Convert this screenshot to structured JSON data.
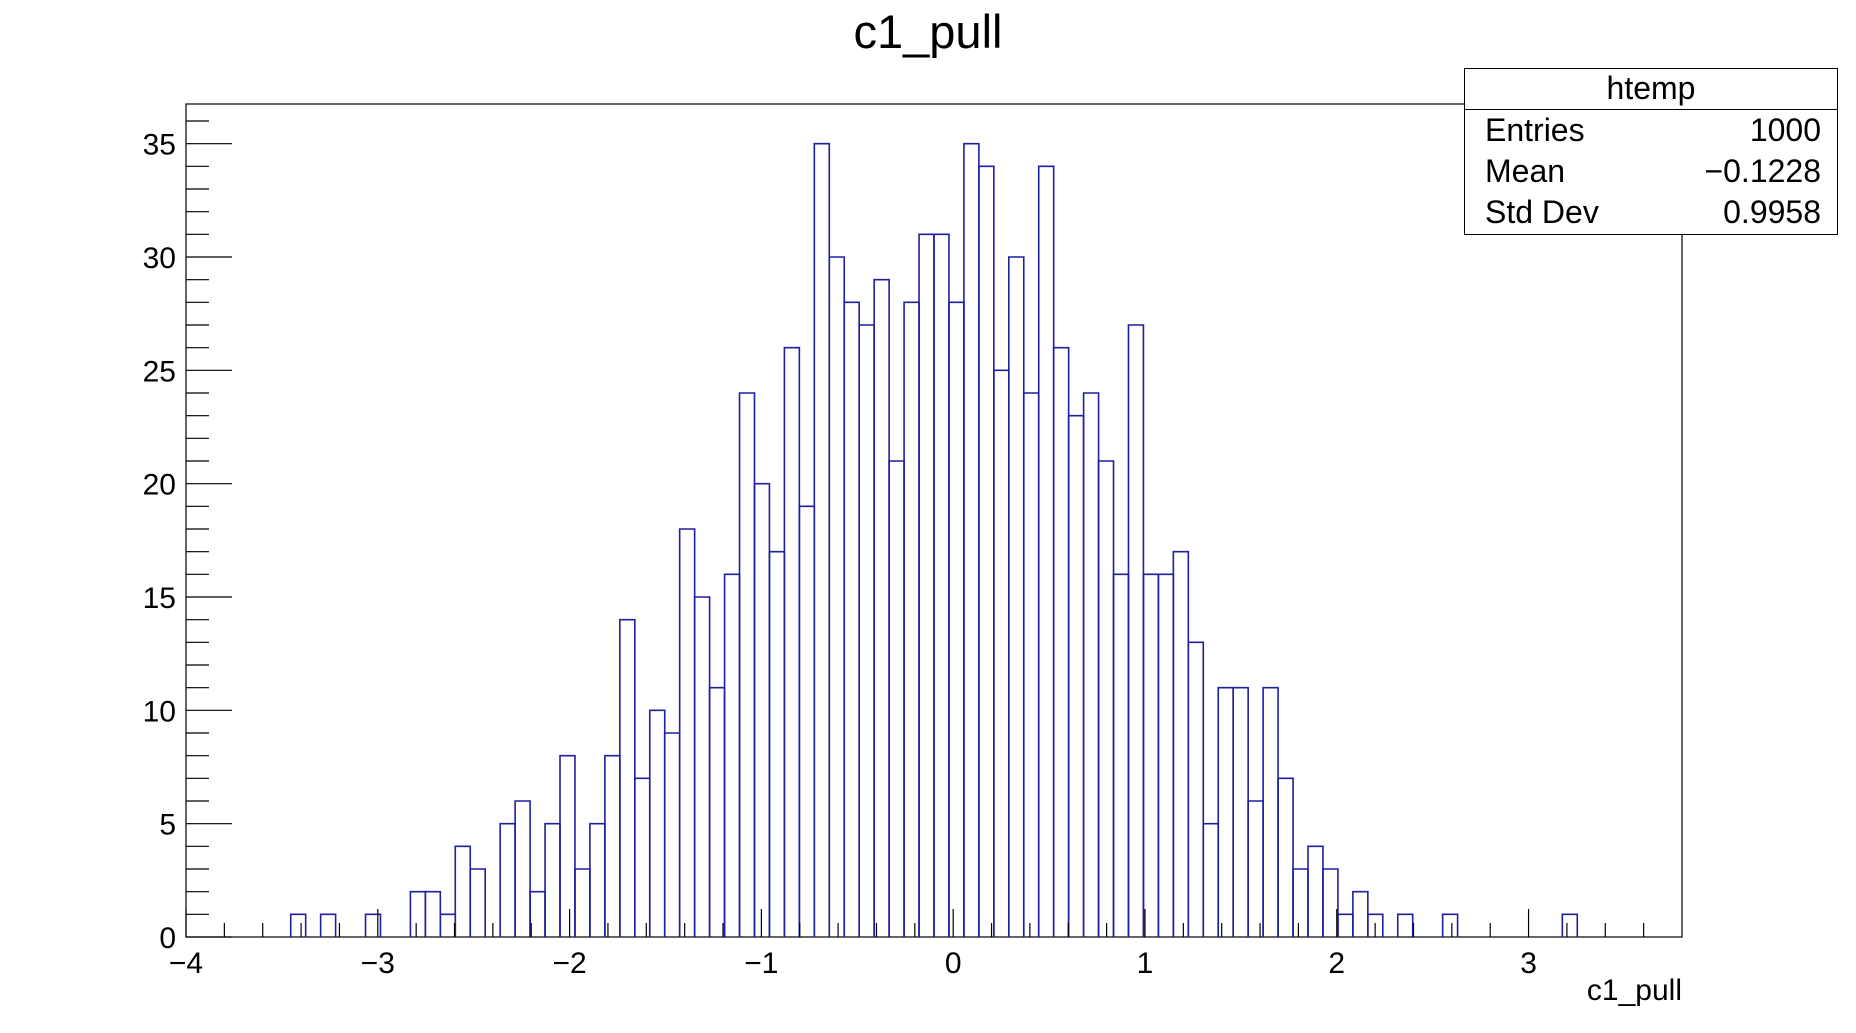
{
  "chart_data": {
    "type": "histogram",
    "title": "c1_pull",
    "xlabel": "c1_pull",
    "ylabel": "",
    "xlim": [
      -4,
      3.8
    ],
    "ylim": [
      0,
      36.75
    ],
    "x_ticks": [
      -4,
      -3,
      -2,
      -1,
      0,
      1,
      2,
      3
    ],
    "x_tick_labels": [
      "−4",
      "−3",
      "−2",
      "−1",
      "0",
      "1",
      "2",
      "3"
    ],
    "y_ticks": [
      0,
      5,
      10,
      15,
      20,
      25,
      30,
      35
    ],
    "y_tick_labels": [
      "0",
      "5",
      "10",
      "15",
      "20",
      "25",
      "30",
      "35"
    ],
    "bin_width": 0.078,
    "bins": [
      {
        "x": -3.454,
        "count": 1
      },
      {
        "x": -3.298,
        "count": 1
      },
      {
        "x": -3.064,
        "count": 1
      },
      {
        "x": -2.83,
        "count": 2
      },
      {
        "x": -2.752,
        "count": 2
      },
      {
        "x": -2.674,
        "count": 1
      },
      {
        "x": -2.596,
        "count": 4
      },
      {
        "x": -2.518,
        "count": 3
      },
      {
        "x": -2.362,
        "count": 5
      },
      {
        "x": -2.284,
        "count": 6
      },
      {
        "x": -2.206,
        "count": 2
      },
      {
        "x": -2.128,
        "count": 5
      },
      {
        "x": -2.05,
        "count": 8
      },
      {
        "x": -1.972,
        "count": 3
      },
      {
        "x": -1.894,
        "count": 5
      },
      {
        "x": -1.816,
        "count": 8
      },
      {
        "x": -1.738,
        "count": 14
      },
      {
        "x": -1.66,
        "count": 7
      },
      {
        "x": -1.582,
        "count": 10
      },
      {
        "x": -1.504,
        "count": 9
      },
      {
        "x": -1.426,
        "count": 18
      },
      {
        "x": -1.348,
        "count": 15
      },
      {
        "x": -1.27,
        "count": 11
      },
      {
        "x": -1.192,
        "count": 16
      },
      {
        "x": -1.114,
        "count": 24
      },
      {
        "x": -1.036,
        "count": 20
      },
      {
        "x": -0.958,
        "count": 17
      },
      {
        "x": -0.88,
        "count": 26
      },
      {
        "x": -0.802,
        "count": 19
      },
      {
        "x": -0.724,
        "count": 35
      },
      {
        "x": -0.646,
        "count": 30
      },
      {
        "x": -0.568,
        "count": 28
      },
      {
        "x": -0.49,
        "count": 27
      },
      {
        "x": -0.412,
        "count": 29
      },
      {
        "x": -0.334,
        "count": 21
      },
      {
        "x": -0.256,
        "count": 28
      },
      {
        "x": -0.178,
        "count": 31
      },
      {
        "x": -0.1,
        "count": 31
      },
      {
        "x": -0.022,
        "count": 28
      },
      {
        "x": 0.056,
        "count": 35
      },
      {
        "x": 0.134,
        "count": 34
      },
      {
        "x": 0.212,
        "count": 25
      },
      {
        "x": 0.29,
        "count": 30
      },
      {
        "x": 0.368,
        "count": 24
      },
      {
        "x": 0.446,
        "count": 34
      },
      {
        "x": 0.524,
        "count": 26
      },
      {
        "x": 0.602,
        "count": 23
      },
      {
        "x": 0.68,
        "count": 24
      },
      {
        "x": 0.758,
        "count": 21
      },
      {
        "x": 0.836,
        "count": 16
      },
      {
        "x": 0.914,
        "count": 27
      },
      {
        "x": 0.992,
        "count": 16
      },
      {
        "x": 1.07,
        "count": 16
      },
      {
        "x": 1.148,
        "count": 17
      },
      {
        "x": 1.226,
        "count": 13
      },
      {
        "x": 1.304,
        "count": 5
      },
      {
        "x": 1.382,
        "count": 11
      },
      {
        "x": 1.46,
        "count": 11
      },
      {
        "x": 1.538,
        "count": 6
      },
      {
        "x": 1.616,
        "count": 11
      },
      {
        "x": 1.694,
        "count": 7
      },
      {
        "x": 1.772,
        "count": 3
      },
      {
        "x": 1.85,
        "count": 4
      },
      {
        "x": 1.928,
        "count": 3
      },
      {
        "x": 2.006,
        "count": 1
      },
      {
        "x": 2.084,
        "count": 2
      },
      {
        "x": 2.162,
        "count": 1
      },
      {
        "x": 2.318,
        "count": 1
      },
      {
        "x": 2.552,
        "count": 1
      },
      {
        "x": 3.176,
        "count": 1
      }
    ],
    "line_color": "#1f1fa0",
    "grid": false,
    "legend": null
  },
  "stats": {
    "title": "htemp",
    "rows": [
      {
        "label": "Entries",
        "value": "1000"
      },
      {
        "label": "Mean",
        "value": "−0.1228"
      },
      {
        "label": "Std Dev",
        "value": "0.9958"
      }
    ]
  }
}
